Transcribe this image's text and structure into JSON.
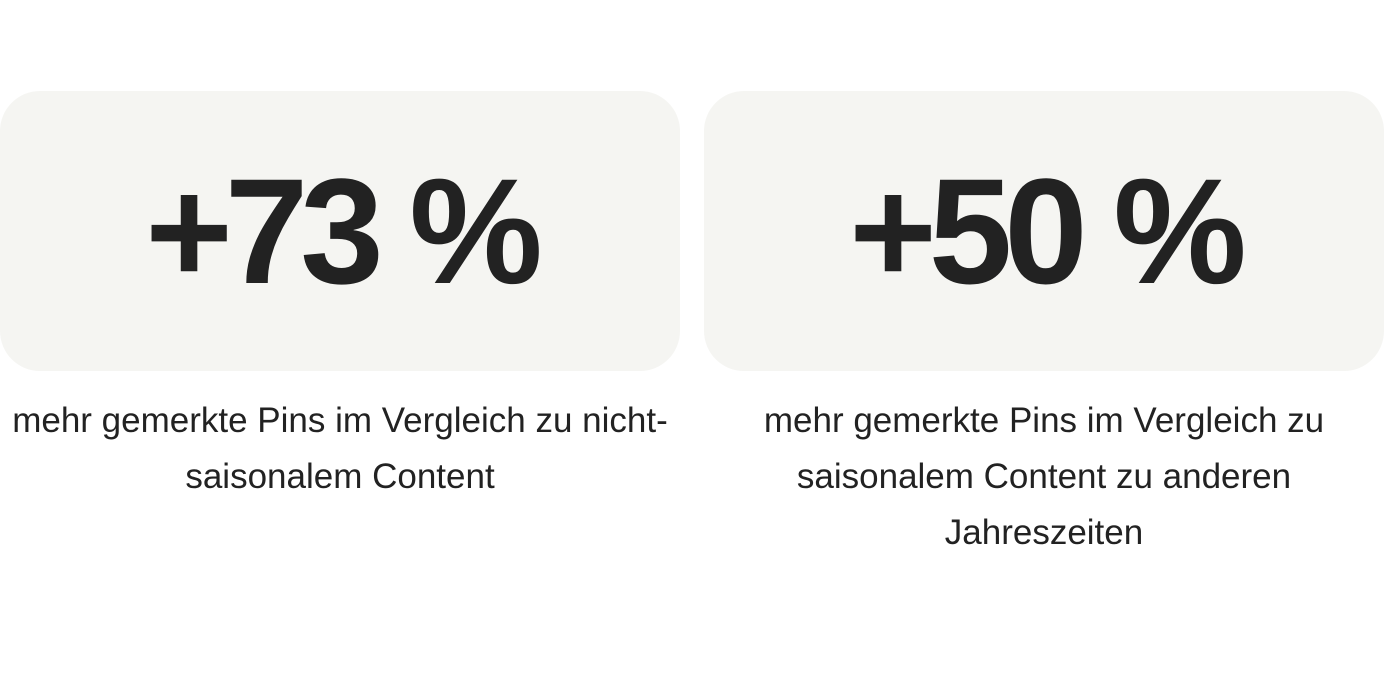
{
  "stats": [
    {
      "value": "+73 %",
      "description": "mehr gemerkte Pins im Vergleich zu nicht-saisonalem Content"
    },
    {
      "value": "+50 %",
      "description": "mehr gemerkte Pins im Vergleich zu saisonalem Content zu anderen Jahreszeiten"
    }
  ],
  "colors": {
    "card_background": "#f5f5f2",
    "text": "#222222"
  }
}
